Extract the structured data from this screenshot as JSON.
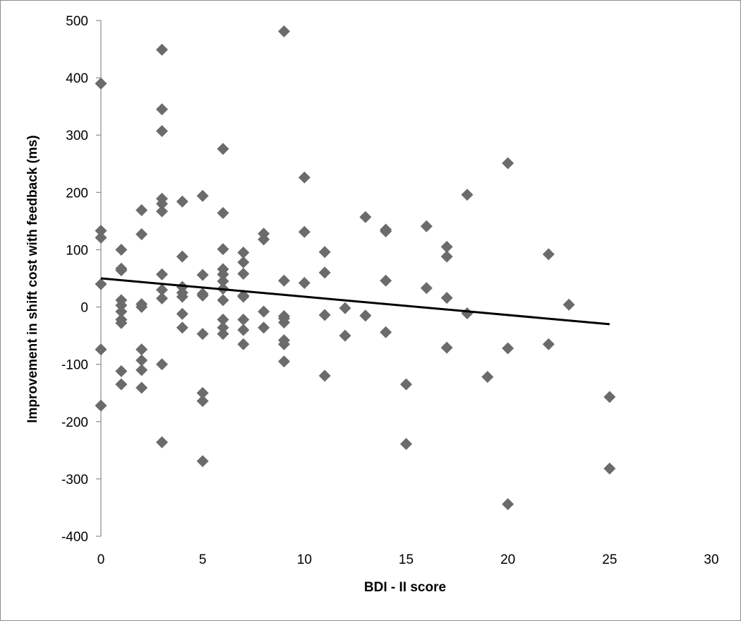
{
  "chart_data": {
    "type": "scatter",
    "title": "",
    "xlabel": "BDI - II score",
    "ylabel": "Improvement in shift cost with feedback (ms)",
    "xlim": [
      0,
      30
    ],
    "ylim": [
      -400,
      500
    ],
    "x_ticks": [
      "0",
      "5",
      "10",
      "15",
      "20",
      "25",
      "30"
    ],
    "y_ticks": [
      "500",
      "400",
      "300",
      "200",
      "100",
      "0",
      "-100",
      "-200",
      "-300",
      "-400"
    ],
    "grid": false,
    "legend": "none",
    "marker_color": "#6b6b6b",
    "trendline": {
      "x": [
        0,
        25
      ],
      "y": [
        50,
        -30
      ],
      "color": "#000000"
    },
    "points": [
      [
        0,
        390
      ],
      [
        0,
        133
      ],
      [
        0,
        121
      ],
      [
        0,
        40
      ],
      [
        0,
        -74
      ],
      [
        0,
        -172
      ],
      [
        1,
        100
      ],
      [
        1,
        67
      ],
      [
        1,
        64
      ],
      [
        1,
        12
      ],
      [
        1,
        3
      ],
      [
        1,
        -8
      ],
      [
        1,
        -22
      ],
      [
        1,
        -28
      ],
      [
        1,
        -112
      ],
      [
        1,
        -135
      ],
      [
        2,
        169
      ],
      [
        2,
        127
      ],
      [
        2,
        5
      ],
      [
        2,
        0
      ],
      [
        2,
        -74
      ],
      [
        2,
        -93
      ],
      [
        2,
        -110
      ],
      [
        2,
        -141
      ],
      [
        3,
        449
      ],
      [
        3,
        345
      ],
      [
        3,
        307
      ],
      [
        3,
        189
      ],
      [
        3,
        180
      ],
      [
        3,
        167
      ],
      [
        3,
        57
      ],
      [
        3,
        30
      ],
      [
        3,
        15
      ],
      [
        3,
        -100
      ],
      [
        3,
        -236
      ],
      [
        4,
        184
      ],
      [
        4,
        88
      ],
      [
        4,
        35
      ],
      [
        4,
        25
      ],
      [
        4,
        18
      ],
      [
        4,
        -12
      ],
      [
        4,
        -36
      ],
      [
        5,
        194
      ],
      [
        5,
        56
      ],
      [
        5,
        23
      ],
      [
        5,
        20
      ],
      [
        5,
        -47
      ],
      [
        5,
        -150
      ],
      [
        5,
        -164
      ],
      [
        5,
        -269
      ],
      [
        6,
        276
      ],
      [
        6,
        164
      ],
      [
        6,
        101
      ],
      [
        6,
        66
      ],
      [
        6,
        57
      ],
      [
        6,
        45
      ],
      [
        6,
        32
      ],
      [
        6,
        12
      ],
      [
        6,
        -22
      ],
      [
        6,
        -36
      ],
      [
        6,
        -47
      ],
      [
        7,
        95
      ],
      [
        7,
        78
      ],
      [
        7,
        58
      ],
      [
        7,
        20
      ],
      [
        7,
        18
      ],
      [
        7,
        -22
      ],
      [
        7,
        -40
      ],
      [
        7,
        -65
      ],
      [
        8,
        128
      ],
      [
        8,
        118
      ],
      [
        8,
        -8
      ],
      [
        8,
        -36
      ],
      [
        9,
        481
      ],
      [
        9,
        46
      ],
      [
        9,
        -16
      ],
      [
        9,
        -20
      ],
      [
        9,
        -27
      ],
      [
        9,
        -58
      ],
      [
        9,
        -65
      ],
      [
        9,
        -95
      ],
      [
        10,
        226
      ],
      [
        10,
        131
      ],
      [
        10,
        42
      ],
      [
        11,
        96
      ],
      [
        11,
        60
      ],
      [
        11,
        -14
      ],
      [
        11,
        -120
      ],
      [
        12,
        -2
      ],
      [
        12,
        -50
      ],
      [
        13,
        157
      ],
      [
        13,
        -15
      ],
      [
        14,
        135
      ],
      [
        14,
        132
      ],
      [
        14,
        46
      ],
      [
        14,
        -44
      ],
      [
        15,
        -135
      ],
      [
        15,
        -239
      ],
      [
        16,
        141
      ],
      [
        16,
        33
      ],
      [
        17,
        105
      ],
      [
        17,
        88
      ],
      [
        17,
        16
      ],
      [
        17,
        -71
      ],
      [
        18,
        196
      ],
      [
        18,
        -11
      ],
      [
        19,
        -122
      ],
      [
        20,
        251
      ],
      [
        20,
        -72
      ],
      [
        20,
        -344
      ],
      [
        22,
        92
      ],
      [
        22,
        -65
      ],
      [
        23,
        4
      ],
      [
        25,
        -157
      ],
      [
        25,
        -282
      ]
    ]
  }
}
